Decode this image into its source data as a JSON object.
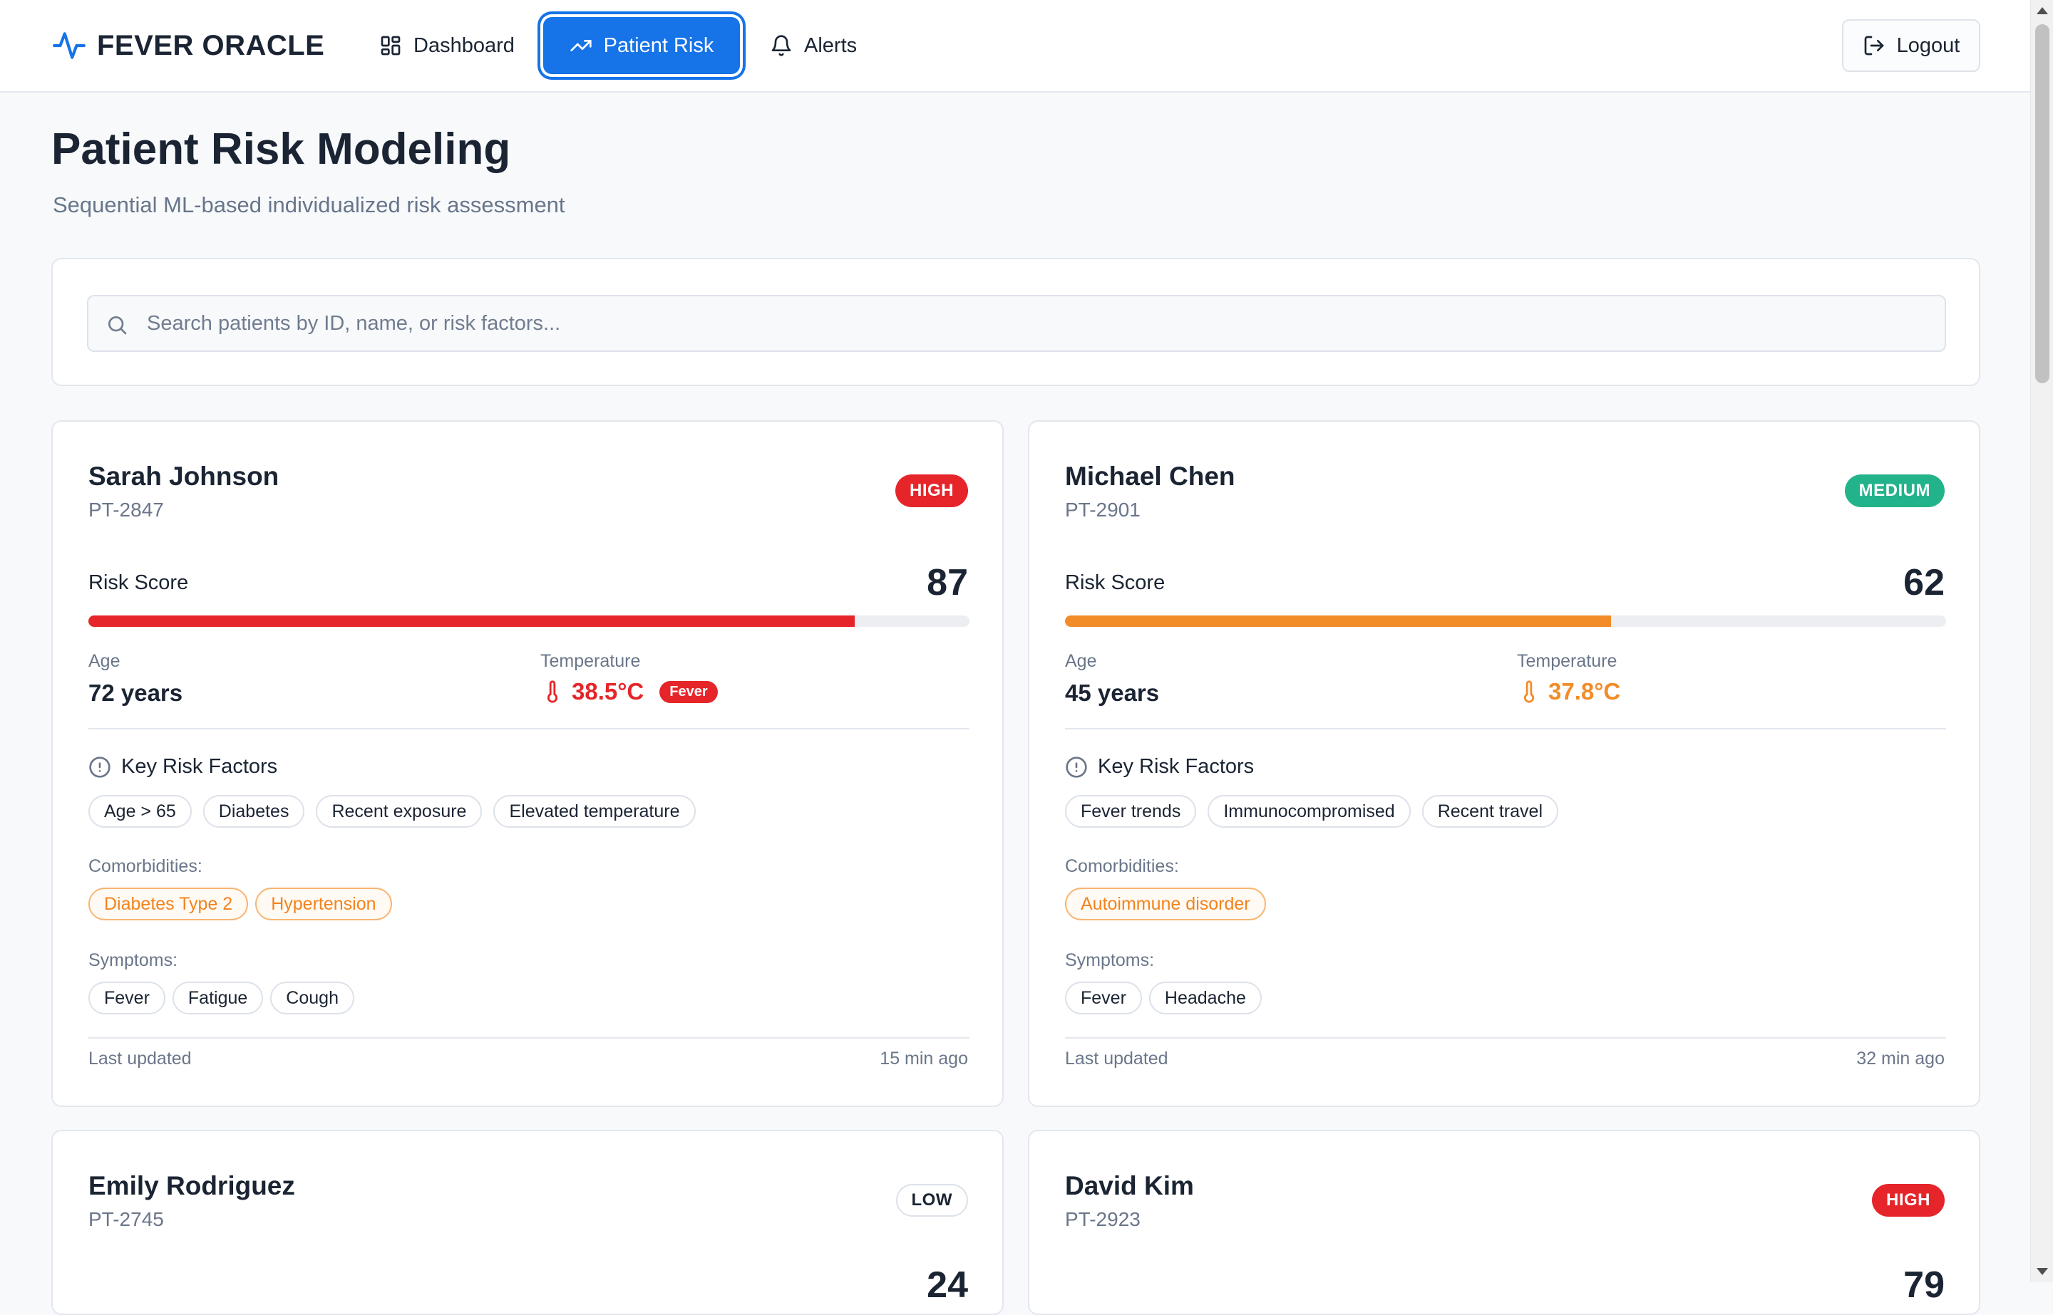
{
  "brand": {
    "name": "FEVER ORACLE"
  },
  "nav": {
    "dashboard": "Dashboard",
    "patient_risk": "Patient Risk",
    "alerts": "Alerts",
    "logout": "Logout"
  },
  "header": {
    "title": "Patient Risk Modeling",
    "subtitle": "Sequential ML-based individualized risk assessment"
  },
  "search": {
    "placeholder": "Search patients by ID, name, or risk factors..."
  },
  "labels": {
    "risk_score": "Risk Score",
    "age": "Age",
    "temperature": "Temperature",
    "key_risk_factors": "Key Risk Factors",
    "comorbidities": "Comorbidities:",
    "symptoms": "Symptoms:",
    "last_updated": "Last updated"
  },
  "colors": {
    "accent": "#1673e8",
    "high": "#e5252a",
    "medium": "#23b38a",
    "bar_high": "#e5252a",
    "bar_medium": "#f28c28",
    "temp_high": "#e5252a",
    "temp_medium": "#f28c28"
  },
  "patients": [
    {
      "name": "Sarah Johnson",
      "id": "PT-2847",
      "risk_level": "HIGH",
      "risk_score": "87",
      "risk_fraction": 0.87,
      "age": "72 years",
      "temperature": "38.5°C",
      "temp_flag": "Fever",
      "risk_factors": [
        "Age > 65",
        "Diabetes",
        "Recent exposure",
        "Elevated temperature"
      ],
      "comorbidities": [
        "Diabetes Type 2",
        "Hypertension"
      ],
      "symptoms": [
        "Fever",
        "Fatigue",
        "Cough"
      ],
      "updated": "15 min ago"
    },
    {
      "name": "Michael Chen",
      "id": "PT-2901",
      "risk_level": "MEDIUM",
      "risk_score": "62",
      "risk_fraction": 0.62,
      "age": "45 years",
      "temperature": "37.8°C",
      "risk_factors": [
        "Fever trends",
        "Immunocompromised",
        "Recent travel"
      ],
      "comorbidities": [
        "Autoimmune disorder"
      ],
      "symptoms": [
        "Fever",
        "Headache"
      ],
      "updated": "32 min ago"
    },
    {
      "name": "Emily Rodriguez",
      "id": "PT-2745",
      "risk_level": "LOW",
      "risk_score": "24"
    },
    {
      "name": "David Kim",
      "id": "PT-2923",
      "risk_level": "HIGH",
      "risk_score": "79"
    }
  ]
}
